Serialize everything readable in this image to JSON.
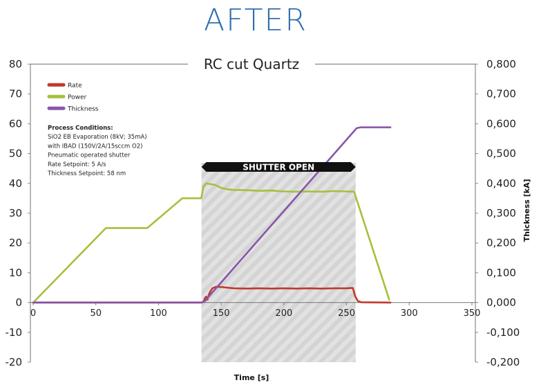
{
  "page_title": "AFTER",
  "chart_data": {
    "type": "line",
    "title": "RC cut Quartz",
    "xlabel": "Time [s]",
    "ylabel": "",
    "y2label": "Thickness [kA]",
    "xlim": [
      0,
      350
    ],
    "ylim": [
      -20,
      80
    ],
    "y2lim": [
      -0.2,
      0.8
    ],
    "x_ticks": [
      "0",
      "50",
      "100",
      "150",
      "200",
      "250",
      "300",
      "350"
    ],
    "y_ticks": [
      "80",
      "70",
      "60",
      "50",
      "40",
      "30",
      "20",
      "10",
      "0",
      "-10",
      "-20"
    ],
    "y2_ticks": [
      "0,800",
      "0,700",
      "0,600",
      "0,500",
      "0,400",
      "0,300",
      "0,200",
      "0,100",
      "0,000",
      "-0,100",
      "-0,200"
    ],
    "grid": false,
    "legend_position": "top-left",
    "shaded_region": {
      "x_start": 134,
      "x_end": 257,
      "label": "SHUTTER OPEN"
    },
    "conditions": [
      "Process Conditions:",
      "SiO2 EB Evaporation (8kV; 35mA)",
      "with IBAD (150V/2A/15sccm O2)",
      "Pneumatic operated shutter",
      "Rate Setpoint: 5 A/s",
      "Thickness Setpoint: 58 nm"
    ],
    "series": [
      {
        "name": "Rate",
        "axis": "left",
        "color": "#c0392b",
        "points": [
          [
            0,
            0
          ],
          [
            134,
            0
          ],
          [
            136,
            0.2
          ],
          [
            137,
            1.5
          ],
          [
            138,
            2
          ],
          [
            139,
            1
          ],
          [
            140,
            2.5
          ],
          [
            141,
            3.5
          ],
          [
            143,
            4.8
          ],
          [
            146,
            5.3
          ],
          [
            150,
            5.2
          ],
          [
            155,
            5.0
          ],
          [
            160,
            4.8
          ],
          [
            170,
            4.7
          ],
          [
            180,
            4.8
          ],
          [
            190,
            4.7
          ],
          [
            200,
            4.8
          ],
          [
            210,
            4.7
          ],
          [
            220,
            4.8
          ],
          [
            230,
            4.7
          ],
          [
            240,
            4.8
          ],
          [
            250,
            4.8
          ],
          [
            255,
            4.9
          ],
          [
            257,
            2.0
          ],
          [
            259,
            0.5
          ],
          [
            262,
            0.1
          ],
          [
            285,
            0
          ]
        ]
      },
      {
        "name": "Power",
        "axis": "left",
        "color": "#a4c03c",
        "points": [
          [
            0,
            0
          ],
          [
            58,
            25
          ],
          [
            91,
            25
          ],
          [
            119,
            35
          ],
          [
            134,
            35
          ],
          [
            136,
            39
          ],
          [
            138,
            40
          ],
          [
            145,
            39.5
          ],
          [
            150,
            38.5
          ],
          [
            155,
            38
          ],
          [
            160,
            37.8
          ],
          [
            170,
            37.7
          ],
          [
            180,
            37.5
          ],
          [
            190,
            37.6
          ],
          [
            200,
            37.3
          ],
          [
            210,
            37.2
          ],
          [
            220,
            37.3
          ],
          [
            230,
            37.2
          ],
          [
            240,
            37.4
          ],
          [
            250,
            37.3
          ],
          [
            256,
            37.2
          ],
          [
            284,
            1
          ]
        ]
      },
      {
        "name": "Thickness",
        "axis": "right",
        "color": "#8855aa",
        "points": [
          [
            0,
            0
          ],
          [
            134,
            0
          ],
          [
            137,
            0.005
          ],
          [
            140,
            0.02
          ],
          [
            258,
            0.585
          ],
          [
            261,
            0.588
          ],
          [
            285,
            0.588
          ]
        ]
      }
    ]
  }
}
